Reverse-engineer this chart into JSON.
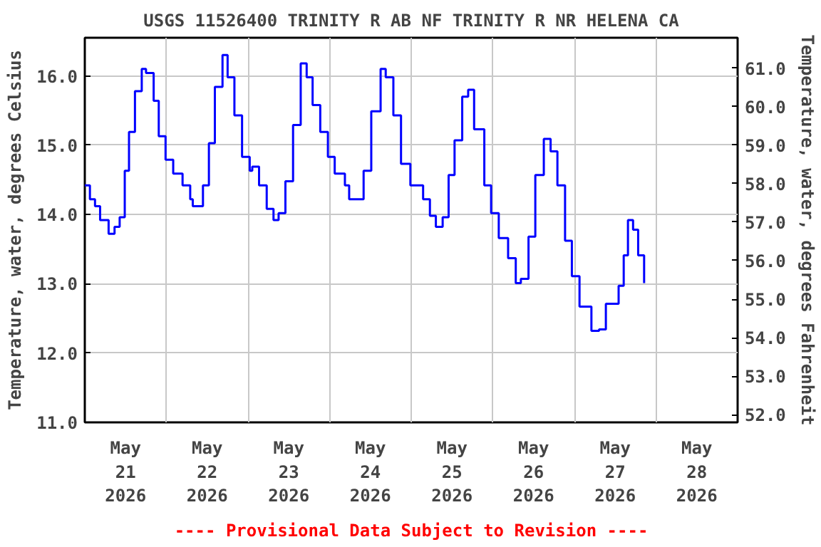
{
  "chart_data": {
    "type": "step",
    "title": "USGS 11526400 TRINITY R AB NF TRINITY R NR HELENA CA",
    "ylabel": "Temperature, water, degrees Celsius",
    "y2label": "Temperature, water, degrees Fahrenheit",
    "annotations": [
      "---- Provisional Data Subject to Revision ----"
    ],
    "x": [
      "2026-05-21T00:00",
      "2026-05-21T01:30",
      "2026-05-21T03:00",
      "2026-05-21T04:30",
      "2026-05-21T07:00",
      "2026-05-21T08:45",
      "2026-05-21T10:15",
      "2026-05-21T11:45",
      "2026-05-21T13:00",
      "2026-05-21T14:45",
      "2026-05-21T16:45",
      "2026-05-21T18:00",
      "2026-05-21T20:15",
      "2026-05-21T21:45",
      "2026-05-21T23:45",
      "2026-05-22T02:00",
      "2026-05-22T04:45",
      "2026-05-22T07:00",
      "2026-05-22T07:45",
      "2026-05-22T09:15",
      "2026-05-22T10:45",
      "2026-05-22T12:30",
      "2026-05-22T14:15",
      "2026-05-22T16:30",
      "2026-05-22T18:00",
      "2026-05-22T20:00",
      "2026-05-22T22:15",
      "2026-05-23T00:30",
      "2026-05-23T01:15",
      "2026-05-23T03:15",
      "2026-05-23T05:30",
      "2026-05-23T07:30",
      "2026-05-23T09:00",
      "2026-05-23T11:00",
      "2026-05-23T13:15",
      "2026-05-23T15:30",
      "2026-05-23T17:15",
      "2026-05-23T19:00",
      "2026-05-23T21:15",
      "2026-05-23T23:30",
      "2026-05-24T01:30",
      "2026-05-24T04:30",
      "2026-05-24T05:45",
      "2026-05-24T08:45",
      "2026-05-24T10:00",
      "2026-05-24T12:15",
      "2026-05-24T15:00",
      "2026-05-24T16:30",
      "2026-05-24T18:45",
      "2026-05-24T21:00",
      "2026-05-24T23:45",
      "2026-05-25T03:30",
      "2026-05-25T05:30",
      "2026-05-25T07:15",
      "2026-05-25T09:15",
      "2026-05-25T11:00",
      "2026-05-25T12:45",
      "2026-05-25T15:00",
      "2026-05-25T16:45",
      "2026-05-25T18:30",
      "2026-05-25T21:30",
      "2026-05-25T23:30",
      "2026-05-26T01:45",
      "2026-05-26T04:30",
      "2026-05-26T06:45",
      "2026-05-26T08:15",
      "2026-05-26T10:30",
      "2026-05-26T12:30",
      "2026-05-26T15:00",
      "2026-05-26T17:00",
      "2026-05-26T19:00",
      "2026-05-26T21:15",
      "2026-05-26T23:15",
      "2026-05-27T01:30",
      "2026-05-27T05:00",
      "2026-05-27T07:15",
      "2026-05-27T09:15",
      "2026-05-27T13:00",
      "2026-05-27T14:30",
      "2026-05-27T15:45",
      "2026-05-27T17:15",
      "2026-05-27T18:45",
      "2026-05-27T20:30"
    ],
    "series": [
      {
        "color": "#0000ff",
        "values": [
          14.42,
          14.22,
          14.12,
          13.92,
          13.72,
          13.82,
          13.96,
          14.63,
          15.19,
          15.78,
          16.1,
          16.04,
          15.64,
          15.13,
          14.79,
          14.59,
          14.42,
          14.22,
          14.12,
          14.12,
          14.42,
          15.03,
          15.84,
          16.3,
          15.98,
          15.43,
          14.83,
          14.63,
          14.69,
          14.42,
          14.08,
          13.92,
          14.02,
          14.48,
          15.29,
          16.18,
          15.98,
          15.58,
          15.19,
          14.83,
          14.59,
          14.42,
          14.22,
          14.22,
          14.63,
          15.49,
          16.1,
          15.98,
          15.43,
          14.73,
          14.42,
          14.22,
          13.98,
          13.82,
          13.96,
          14.57,
          15.07,
          15.7,
          15.8,
          15.23,
          14.42,
          14.02,
          13.66,
          13.37,
          13.01,
          13.07,
          13.68,
          14.57,
          15.09,
          14.91,
          14.42,
          13.62,
          13.11,
          12.67,
          12.32,
          12.34,
          12.71,
          12.97,
          13.41,
          13.92,
          13.78,
          13.41,
          13.01
        ]
      }
    ],
    "xlim": [
      "2026-05-21T00:00",
      "2026-05-29T00:00"
    ],
    "xticks": [
      {
        "value": "2026-05-21T12:00",
        "label": "May\n21\n2026"
      },
      {
        "value": "2026-05-22T12:00",
        "label": "May\n22\n2026"
      },
      {
        "value": "2026-05-23T12:00",
        "label": "May\n23\n2026"
      },
      {
        "value": "2026-05-24T12:00",
        "label": "May\n24\n2026"
      },
      {
        "value": "2026-05-25T12:00",
        "label": "May\n25\n2026"
      },
      {
        "value": "2026-05-26T12:00",
        "label": "May\n26\n2026"
      },
      {
        "value": "2026-05-27T12:00",
        "label": "May\n27\n2026"
      },
      {
        "value": "2026-05-28T12:00",
        "label": "May\n28\n2026"
      },
      {
        "value": "2026-05-22T00:00",
        "label": null
      },
      {
        "value": "2026-05-23T00:00",
        "label": null
      },
      {
        "value": "2026-05-24T00:00",
        "label": null
      },
      {
        "value": "2026-05-25T00:00",
        "label": null
      },
      {
        "value": "2026-05-26T00:00",
        "label": null
      },
      {
        "value": "2026-05-27T00:00",
        "label": null
      },
      {
        "value": "2026-05-28T00:00",
        "label": null
      }
    ],
    "ylim": [
      11.0,
      16.55
    ],
    "yticks": [
      {
        "value": 11,
        "label": "11.0"
      },
      {
        "value": 12,
        "label": "12.0"
      },
      {
        "value": 13,
        "label": "13.0"
      },
      {
        "value": 14,
        "label": "14.0"
      },
      {
        "value": 15,
        "label": "15.0"
      },
      {
        "value": 16,
        "label": "16.0"
      }
    ],
    "y2lim": [
      51.8,
      61.79
    ],
    "y2ticks": [
      {
        "value": 52,
        "label": "52.0"
      },
      {
        "value": 53,
        "label": "53.0"
      },
      {
        "value": 54,
        "label": "54.0"
      },
      {
        "value": 55,
        "label": "55.0"
      },
      {
        "value": 56,
        "label": "56.0"
      },
      {
        "value": 57,
        "label": "57.0"
      },
      {
        "value": 58,
        "label": "58.0"
      },
      {
        "value": 59,
        "label": "59.0"
      },
      {
        "value": 60,
        "label": "60.0"
      },
      {
        "value": 61,
        "label": "61.0"
      }
    ],
    "grid": true,
    "line_style": "solid",
    "marker": "none"
  }
}
